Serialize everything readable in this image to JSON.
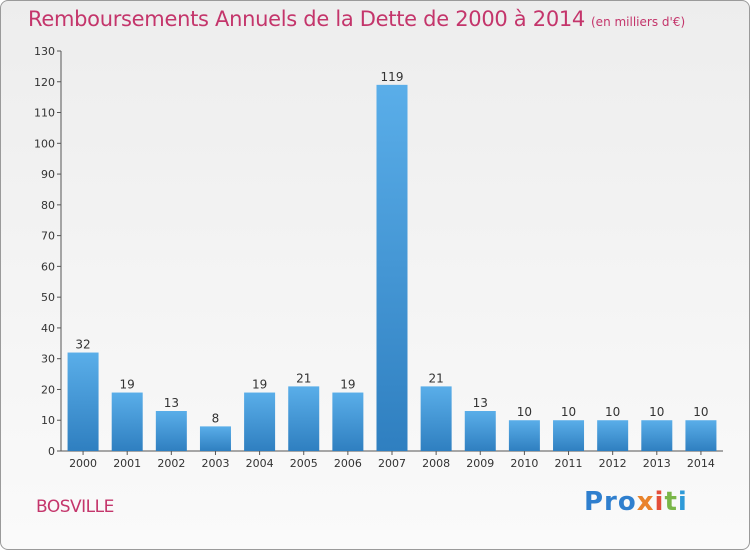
{
  "header": {
    "title": "Remboursements Annuels de la Dette de 2000 à 2014",
    "subtitle": "(en milliers d'€)"
  },
  "footer": {
    "city": "BOSVILLE",
    "logo": [
      "Pro",
      "x",
      "i",
      "t",
      "i"
    ]
  },
  "colors": {
    "title": "#c4356b",
    "bar_top": "#5aaee9",
    "bar_bottom": "#2f7fc0"
  },
  "chart_data": {
    "type": "bar",
    "title": "Remboursements Annuels de la Dette de 2000 à 2014",
    "categories": [
      "2000",
      "2001",
      "2002",
      "2003",
      "2004",
      "2005",
      "2006",
      "2007",
      "2008",
      "2009",
      "2010",
      "2011",
      "2012",
      "2013",
      "2014"
    ],
    "values": [
      32,
      19,
      13,
      8,
      19,
      21,
      19,
      119,
      21,
      13,
      10,
      10,
      10,
      10,
      10
    ],
    "ylim": [
      0,
      130
    ],
    "yticks": [
      0,
      10,
      20,
      30,
      40,
      50,
      60,
      70,
      80,
      90,
      100,
      110,
      120,
      130
    ],
    "grid": false,
    "data_labels": true
  }
}
